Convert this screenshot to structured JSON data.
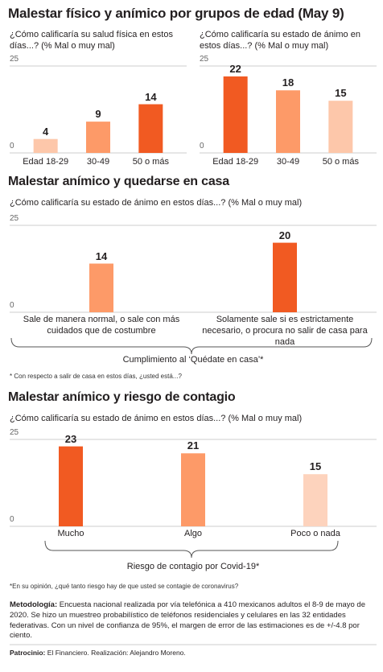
{
  "title": "Malestar físico y anímico por grupos de edad (May 9)",
  "chart_data": [
    {
      "type": "bar",
      "subtitle": "¿Cómo calificaría su salud física en estos días...? (% Mal o muy mal)",
      "categories": [
        "Edad 18-29",
        "30-49",
        "50 o más"
      ],
      "values": [
        4,
        9,
        14
      ],
      "colors": [
        "#fdc7aa",
        "#fd9a68",
        "#f15a22"
      ],
      "ylim": [
        0,
        25
      ],
      "yticks": [
        0,
        25
      ],
      "grid": true
    },
    {
      "type": "bar",
      "subtitle": "¿Cómo calificaría su estado de ánimo en estos días...? (% Mal o muy mal)",
      "categories": [
        "Edad 18-29",
        "30-49",
        "50 o más"
      ],
      "values": [
        22,
        18,
        15
      ],
      "colors": [
        "#f15a22",
        "#fd9a68",
        "#fdc7aa"
      ],
      "ylim": [
        0,
        25
      ],
      "yticks": [
        0,
        25
      ],
      "grid": true
    },
    {
      "type": "bar",
      "title": "Malestar anímico y quedarse en casa",
      "subtitle": "¿Cómo calificaría su estado de ánimo en estos días...? (% Mal o muy mal)",
      "categories": [
        "Sale de manera normal, o sale con más cuidados que de costumbre",
        "Solamente sale si es estrictamente necesario, o procura no salir de casa para nada"
      ],
      "values": [
        14,
        20
      ],
      "colors": [
        "#fd9a68",
        "#f15a22"
      ],
      "xlabel": "Cumplimiento al ‘Quédate en casa’*",
      "note": "* Con respecto a salir de casa en estos días, ¿usted está...?",
      "ylim": [
        0,
        25
      ],
      "yticks": [
        0,
        25
      ],
      "grid": true
    },
    {
      "type": "bar",
      "title": "Malestar anímico y riesgo de contagio",
      "subtitle": "¿Cómo calificaría su estado de ánimo en estos días...? (% Mal o muy mal)",
      "categories": [
        "Mucho",
        "Algo",
        "Poco o nada"
      ],
      "values": [
        23,
        21,
        15
      ],
      "colors": [
        "#f15a22",
        "#fd9a68",
        "#fdd3bd"
      ],
      "xlabel": "Riesgo de contagio por Covid-19*",
      "note": "*En su opinión, ¿qué tanto riesgo hay de que usted se contagie de coronavirus?",
      "ylim": [
        0,
        25
      ],
      "yticks": [
        0,
        25
      ],
      "grid": true
    }
  ],
  "methodology": {
    "label": "Metodología:",
    "text": "Encuesta nacional realizada por vía telefónica a 410 mexicanos adultos el 8-9 de mayo de 2020. Se hizo un muestreo probabilístico de teléfonos residenciales y celulares en las 32 entidades federativas. Con un nivel de confianza de 95%, el margen de error de las estimaciones es de +/-4.8 por ciento."
  },
  "credits": {
    "label": "Patrocinio:",
    "text": "El Financiero. Realización: Alejandro Moreno."
  }
}
